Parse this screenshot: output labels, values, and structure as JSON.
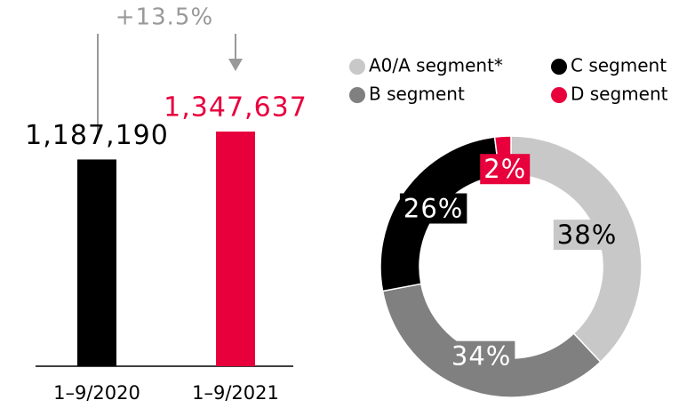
{
  "chart_data": [
    {
      "type": "bar",
      "categories": [
        "1–9/2020",
        "1–9/2021"
      ],
      "values": [
        1187190,
        1347637
      ],
      "value_labels": [
        "1,187,190",
        "1,347,637"
      ],
      "colors": [
        "#000000",
        "#e8003d"
      ],
      "label_colors": [
        "#000000",
        "#e8003d"
      ],
      "annotation": "+13.5%"
    },
    {
      "type": "donut",
      "categories": [
        "A0/A segment*",
        "B segment",
        "C segment",
        "D segment"
      ],
      "values": [
        38,
        34,
        26,
        2
      ],
      "value_labels": [
        "38%",
        "34%",
        "26%",
        "2%"
      ],
      "colors": [
        "#c8c8c8",
        "#808080",
        "#000000",
        "#e8003d"
      ]
    }
  ]
}
